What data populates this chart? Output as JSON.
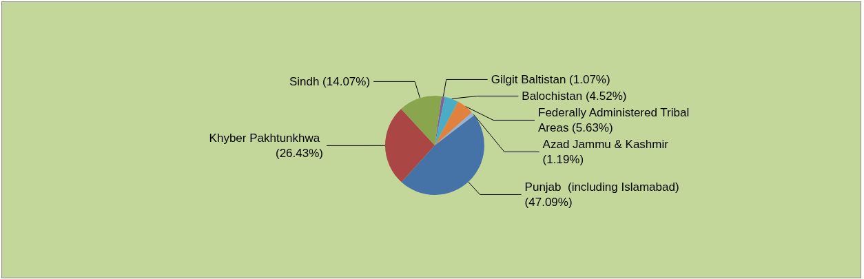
{
  "chart_data": {
    "type": "pie",
    "categories": [
      "Gilgit Baltistan",
      "Balochistan",
      "Federally Administered Tribal Areas",
      "Azad Jammu & Kashmir",
      "Punjab  (including Islamabad)",
      "Khyber Pakhtunkhwa",
      "Sindh"
    ],
    "values": [
      1.07,
      4.52,
      5.63,
      1.19,
      47.09,
      26.43,
      14.07
    ],
    "value_labels": [
      "(1.07%)",
      "(4.52%)",
      "(5.63%)",
      "(1.19%)",
      "(47.09%)",
      "(26.43%)",
      "(14.07%)"
    ],
    "colors": [
      "#7f62a0",
      "#4bacc6",
      "#e0823d",
      "#95b3d7",
      "#4572a7",
      "#aa4643",
      "#89a54e"
    ]
  }
}
